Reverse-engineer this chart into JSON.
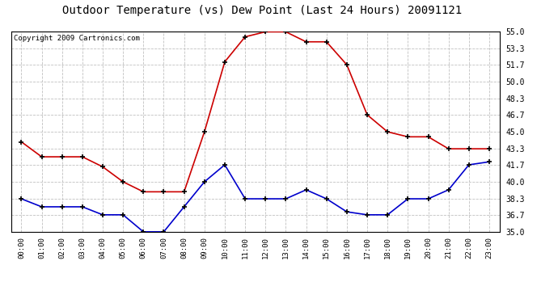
{
  "title": "Outdoor Temperature (vs) Dew Point (Last 24 Hours) 20091121",
  "copyright_text": "Copyright 2009 Cartronics.com",
  "hours": [
    "00:00",
    "01:00",
    "02:00",
    "03:00",
    "04:00",
    "05:00",
    "06:00",
    "07:00",
    "08:00",
    "09:00",
    "10:00",
    "11:00",
    "12:00",
    "13:00",
    "14:00",
    "15:00",
    "16:00",
    "17:00",
    "18:00",
    "19:00",
    "20:00",
    "21:00",
    "22:00",
    "23:00"
  ],
  "temp": [
    44.0,
    42.5,
    42.5,
    42.5,
    41.5,
    40.0,
    39.0,
    39.0,
    39.0,
    45.0,
    52.0,
    54.5,
    55.0,
    55.0,
    54.0,
    54.0,
    51.7,
    46.7,
    45.0,
    44.5,
    44.5,
    43.3,
    43.3,
    43.3
  ],
  "dewpoint": [
    38.3,
    37.5,
    37.5,
    37.5,
    36.7,
    36.7,
    35.0,
    35.0,
    37.5,
    40.0,
    41.7,
    38.3,
    38.3,
    38.3,
    39.2,
    38.3,
    37.0,
    36.7,
    36.7,
    38.3,
    38.3,
    39.2,
    41.7,
    42.0
  ],
  "ylim": [
    35.0,
    55.0
  ],
  "ytick_values": [
    35.0,
    36.7,
    38.3,
    40.0,
    41.7,
    43.3,
    45.0,
    46.7,
    48.3,
    50.0,
    51.7,
    53.3,
    55.0
  ],
  "ytick_labels": [
    "35.0",
    "36.7",
    "38.3",
    "40.0",
    "41.7",
    "43.3",
    "45.0",
    "46.7",
    "48.3",
    "50.0",
    "51.7",
    "53.3",
    "55.0"
  ],
  "temp_color": "#cc0000",
  "dewpoint_color": "#0000cc",
  "grid_color": "#c0c0c0",
  "bg_color": "#ffffff",
  "title_fontsize": 10,
  "copyright_fontsize": 6.5,
  "tick_fontsize": 6.5,
  "ytick_fontsize": 7
}
